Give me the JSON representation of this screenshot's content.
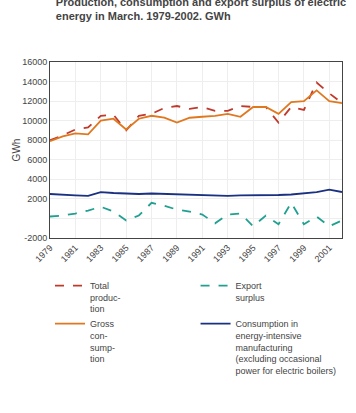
{
  "chart_data": {
    "type": "line",
    "title": "Production, consumption and export surplus of electric\nenergy in March. 1979-2002. GWh",
    "y_label": "GWh",
    "x": [
      1979,
      1980,
      1981,
      1982,
      1983,
      1984,
      1985,
      1986,
      1987,
      1988,
      1989,
      1990,
      1991,
      1992,
      1993,
      1994,
      1995,
      1996,
      1997,
      1998,
      1999,
      2000,
      2001,
      2002
    ],
    "series": [
      {
        "name": "Total\nproduc-\ntion",
        "color": "#c0392b",
        "line_style": "dashed",
        "values": [
          8000,
          8500,
          9100,
          9300,
          10500,
          10600,
          9000,
          10500,
          10700,
          11300,
          11500,
          11200,
          11400,
          11000,
          11000,
          11500,
          11400,
          11400,
          9800,
          11400,
          11100,
          13900,
          12800,
          11800
        ]
      },
      {
        "name": "Export\nsurplus",
        "color": "#20a090",
        "line_style": "dashed",
        "values": [
          200,
          300,
          500,
          800,
          1200,
          700,
          -200,
          300,
          1600,
          1300,
          900,
          700,
          400,
          -500,
          400,
          500,
          -800,
          300,
          -600,
          1600,
          -600,
          200,
          -800,
          -200
        ]
      },
      {
        "name": "Gross\ncon-\nsump-\ntion",
        "color": "#e07820",
        "line_style": "solid",
        "values": [
          7900,
          8400,
          8700,
          8600,
          10000,
          10200,
          9100,
          10200,
          10500,
          10300,
          9800,
          10300,
          10400,
          10500,
          10700,
          10400,
          11400,
          11400,
          10700,
          11900,
          12000,
          13100,
          12000,
          11800
        ]
      },
      {
        "name": "Consumption in\nenergy-intensive\nmanufacturing\n(excluding occasional\npower for electric boilers)",
        "color": "#1a3080",
        "line_style": "solid",
        "values": [
          2500,
          2400,
          2350,
          2300,
          2700,
          2600,
          2550,
          2500,
          2550,
          2500,
          2450,
          2400,
          2350,
          2350,
          2300,
          2350,
          2350,
          2400,
          2400,
          2450,
          2550,
          2700,
          2950,
          2700
        ]
      }
    ],
    "xlim": [
      1979,
      2002
    ],
    "xticks": [
      1979,
      1981,
      1983,
      1985,
      1987,
      1989,
      1991,
      1993,
      1995,
      1997,
      1999,
      2001
    ],
    "ylim": [
      -2000,
      16000
    ],
    "yticks": [
      -2000,
      {
        "value": 0,
        "label": null
      },
      2000,
      4000,
      6000,
      8000,
      10000,
      12000,
      14000,
      16000
    ],
    "grid": true,
    "legend": "bottom"
  }
}
